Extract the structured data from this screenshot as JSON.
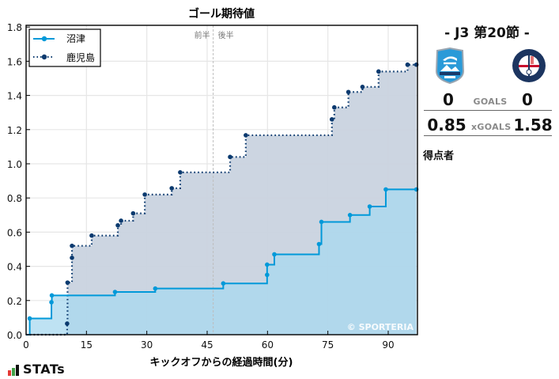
{
  "chart_data": {
    "type": "line",
    "subtype": "step-area",
    "title": "ゴール期待値",
    "xlabel": "キックオフからの経過時間(分)",
    "ylabel": "",
    "xlim": [
      0,
      97
    ],
    "ylim": [
      0,
      1.8
    ],
    "xticks": [
      0,
      15,
      30,
      45,
      60,
      75,
      90
    ],
    "yticks": [
      0.0,
      0.2,
      0.4,
      0.6,
      0.8,
      1.0,
      1.2,
      1.4,
      1.6,
      1.8
    ],
    "grid": true,
    "legend_position": "upper left",
    "half_marker": {
      "x": 46.5,
      "label_left": "前半",
      "label_right": "後半"
    },
    "watermark": "© SPORTERIA",
    "series": [
      {
        "name": "沼津",
        "color": "#0099d9",
        "fill": "#a8d8ef",
        "line_style": "solid",
        "points": [
          [
            0,
            0
          ],
          [
            0.9,
            0.095
          ],
          [
            6.3,
            0.19
          ],
          [
            6.4,
            0.23
          ],
          [
            22.1,
            0.25
          ],
          [
            32.1,
            0.27
          ],
          [
            49.0,
            0.3
          ],
          [
            59.9,
            0.35
          ],
          [
            59.9,
            0.41
          ],
          [
            61.7,
            0.47
          ],
          [
            72.8,
            0.53
          ],
          [
            73.4,
            0.66
          ],
          [
            80.5,
            0.7
          ],
          [
            85.4,
            0.75
          ],
          [
            89.4,
            0.85
          ],
          [
            97,
            0.85
          ]
        ]
      },
      {
        "name": "鹿児島",
        "color": "#0b3a6f",
        "fill": "#c9d3df",
        "line_style": "dotted",
        "points": [
          [
            0,
            0
          ],
          [
            10.2,
            0.065
          ],
          [
            10.3,
            0.305
          ],
          [
            11.4,
            0.45
          ],
          [
            11.4,
            0.52
          ],
          [
            16.3,
            0.58
          ],
          [
            22.8,
            0.64
          ],
          [
            23.6,
            0.667
          ],
          [
            26.6,
            0.71
          ],
          [
            29.5,
            0.82
          ],
          [
            36.2,
            0.857
          ],
          [
            38.3,
            0.95
          ],
          [
            50.7,
            1.04
          ],
          [
            54.6,
            1.167
          ],
          [
            76.0,
            1.26
          ],
          [
            76.6,
            1.33
          ],
          [
            80.1,
            1.42
          ],
          [
            83.6,
            1.45
          ],
          [
            87.6,
            1.54
          ],
          [
            94.8,
            1.58
          ],
          [
            97,
            1.58
          ]
        ]
      }
    ]
  },
  "match": {
    "round_title": "- J3 第20節 -",
    "home_team": "沼津",
    "away_team": "鹿児島",
    "home_crest": "azul-claro-numazu-crest",
    "away_crest": "kagoshima-united-fc-crest",
    "goals_label": "GOALS",
    "home_goals": "0",
    "away_goals": "0",
    "xgoals_label": "xGOALS",
    "home_xg": "0.85",
    "away_xg": "1.58",
    "scorers_label": "得点者"
  },
  "branding": {
    "stats_logo_text": "STATs",
    "bar_colors": [
      "#e53935",
      "#43a047",
      "#111111"
    ]
  }
}
